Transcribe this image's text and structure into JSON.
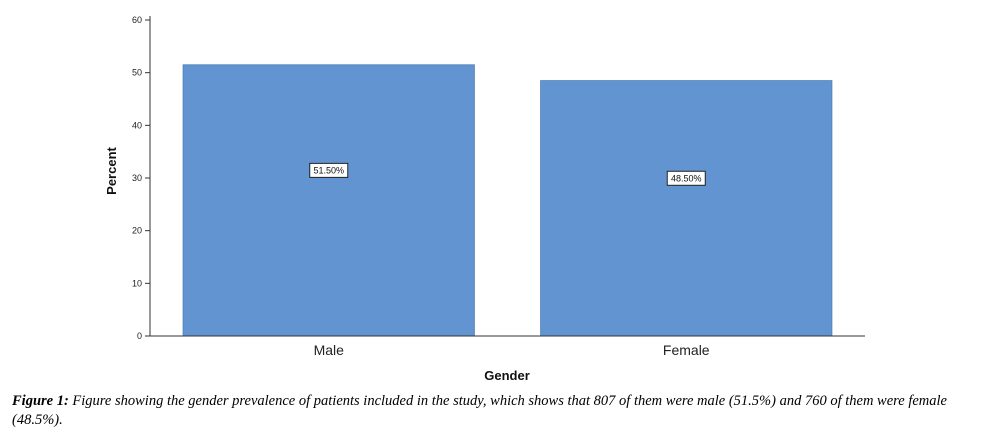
{
  "chart_data": {
    "type": "bar",
    "categories": [
      "Male",
      "Female"
    ],
    "values": [
      51.5,
      48.5
    ],
    "data_labels": [
      "51.50%",
      "48.50%"
    ],
    "xlabel": "Gender",
    "ylabel": "Percent",
    "ylim": [
      0,
      60
    ],
    "yticks": [
      0,
      10,
      20,
      30,
      40,
      50,
      60
    ],
    "ytick_labels": [
      "0",
      "10",
      "20",
      "30",
      "40",
      "50",
      "60"
    ],
    "grid": false,
    "bar_color": "#6194d0",
    "bar_edge_color": "#4d7fb8"
  },
  "caption": {
    "label": "Figure 1:",
    "text": "Figure showing the gender prevalence of patients included in the study, which shows that  807 of them were male (51.5%) and 760 of them were female (48.5%)."
  }
}
